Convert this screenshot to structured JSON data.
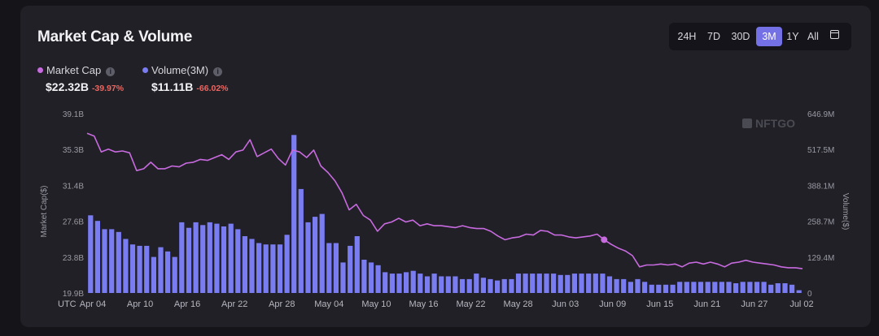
{
  "header": {
    "title": "Market Cap & Volume"
  },
  "range_buttons": [
    "24H",
    "7D",
    "30D",
    "3M",
    "1Y",
    "All"
  ],
  "active_range": "3M",
  "legend": {
    "market_cap": {
      "label": "Market Cap",
      "value": "$22.32B",
      "change": "-39.97%"
    },
    "volume": {
      "label": "Volume(3M)",
      "value": "$11.11B",
      "change": "-66.02%"
    }
  },
  "colors": {
    "market_cap": "#c86ae0",
    "volume": "#7a7cf2",
    "negative": "#ee6560",
    "accent": "#7471e6"
  },
  "watermark": "NFTGO",
  "chart_data": {
    "type": "bar+line",
    "title": "Market Cap & Volume",
    "xlabel": "",
    "x_axis_prefix": "UTC",
    "x_tick_labels": [
      "Apr 04",
      "Apr 10",
      "Apr 16",
      "Apr 22",
      "Apr 28",
      "May 04",
      "May 10",
      "May 16",
      "May 22",
      "May 28",
      "Jun 03",
      "Jun 09",
      "Jun 15",
      "Jun 21",
      "Jun 27",
      "Jul 02"
    ],
    "left_axis": {
      "label": "Market Cap($)",
      "ticks": [
        "19.9B",
        "23.8B",
        "27.6B",
        "31.4B",
        "35.3B",
        "39.1B"
      ],
      "range": [
        19.9,
        39.1
      ],
      "unit": "B"
    },
    "right_axis": {
      "label": "Volume($)",
      "ticks": [
        "0",
        "129.4M",
        "258.7M",
        "388.1M",
        "517.5M",
        "646.9M"
      ],
      "range": [
        0,
        646.9
      ],
      "unit": "M"
    },
    "series": [
      {
        "name": "Market Cap",
        "type": "line",
        "axis": "left",
        "values": [
          37.0,
          36.7,
          35.0,
          35.3,
          35.0,
          35.1,
          34.9,
          33.0,
          33.2,
          33.9,
          33.2,
          33.2,
          33.5,
          33.4,
          33.8,
          33.9,
          34.2,
          34.1,
          34.4,
          34.7,
          34.2,
          35.0,
          35.2,
          36.3,
          34.5,
          34.9,
          35.3,
          34.3,
          33.6,
          35.2,
          35.0,
          34.4,
          35.2,
          33.5,
          32.8,
          31.9,
          30.6,
          28.8,
          29.4,
          28.2,
          27.7,
          26.5,
          27.3,
          27.5,
          27.9,
          27.5,
          27.7,
          27.1,
          27.3,
          27.1,
          27.1,
          27.0,
          26.9,
          27.1,
          26.9,
          26.8,
          26.8,
          26.5,
          26.0,
          25.6,
          25.8,
          25.9,
          26.2,
          26.1,
          26.6,
          26.5,
          26.1,
          26.1,
          25.9,
          25.8,
          25.9,
          26.0,
          26.2,
          25.6,
          25.1,
          24.7,
          24.4,
          23.9,
          22.7,
          22.9,
          22.9,
          23.0,
          22.9,
          23.0,
          22.7,
          23.1,
          23.2,
          23.0,
          23.2,
          23.0,
          22.7,
          23.1,
          23.2,
          23.4,
          23.2,
          23.1,
          23.0,
          22.9,
          22.7,
          22.6,
          22.6,
          22.5
        ],
        "marker_index": 73
      },
      {
        "name": "Volume(3M)",
        "type": "bar",
        "axis": "right",
        "values": [
          280,
          260,
          230,
          230,
          220,
          195,
          175,
          170,
          170,
          130,
          165,
          150,
          130,
          255,
          235,
          255,
          245,
          255,
          250,
          240,
          250,
          230,
          205,
          195,
          180,
          175,
          175,
          175,
          210,
          570,
          375,
          255,
          275,
          285,
          180,
          180,
          110,
          170,
          205,
          120,
          110,
          100,
          75,
          70,
          70,
          75,
          80,
          70,
          60,
          70,
          60,
          60,
          60,
          50,
          50,
          70,
          55,
          50,
          45,
          50,
          50,
          70,
          70,
          70,
          70,
          70,
          70,
          65,
          65,
          70,
          70,
          70,
          70,
          70,
          60,
          50,
          50,
          40,
          50,
          40,
          30,
          30,
          30,
          30,
          40,
          40,
          40,
          40,
          40,
          40,
          40,
          40,
          35,
          40,
          40,
          40,
          40,
          30,
          35,
          35,
          30,
          10
        ]
      }
    ]
  }
}
